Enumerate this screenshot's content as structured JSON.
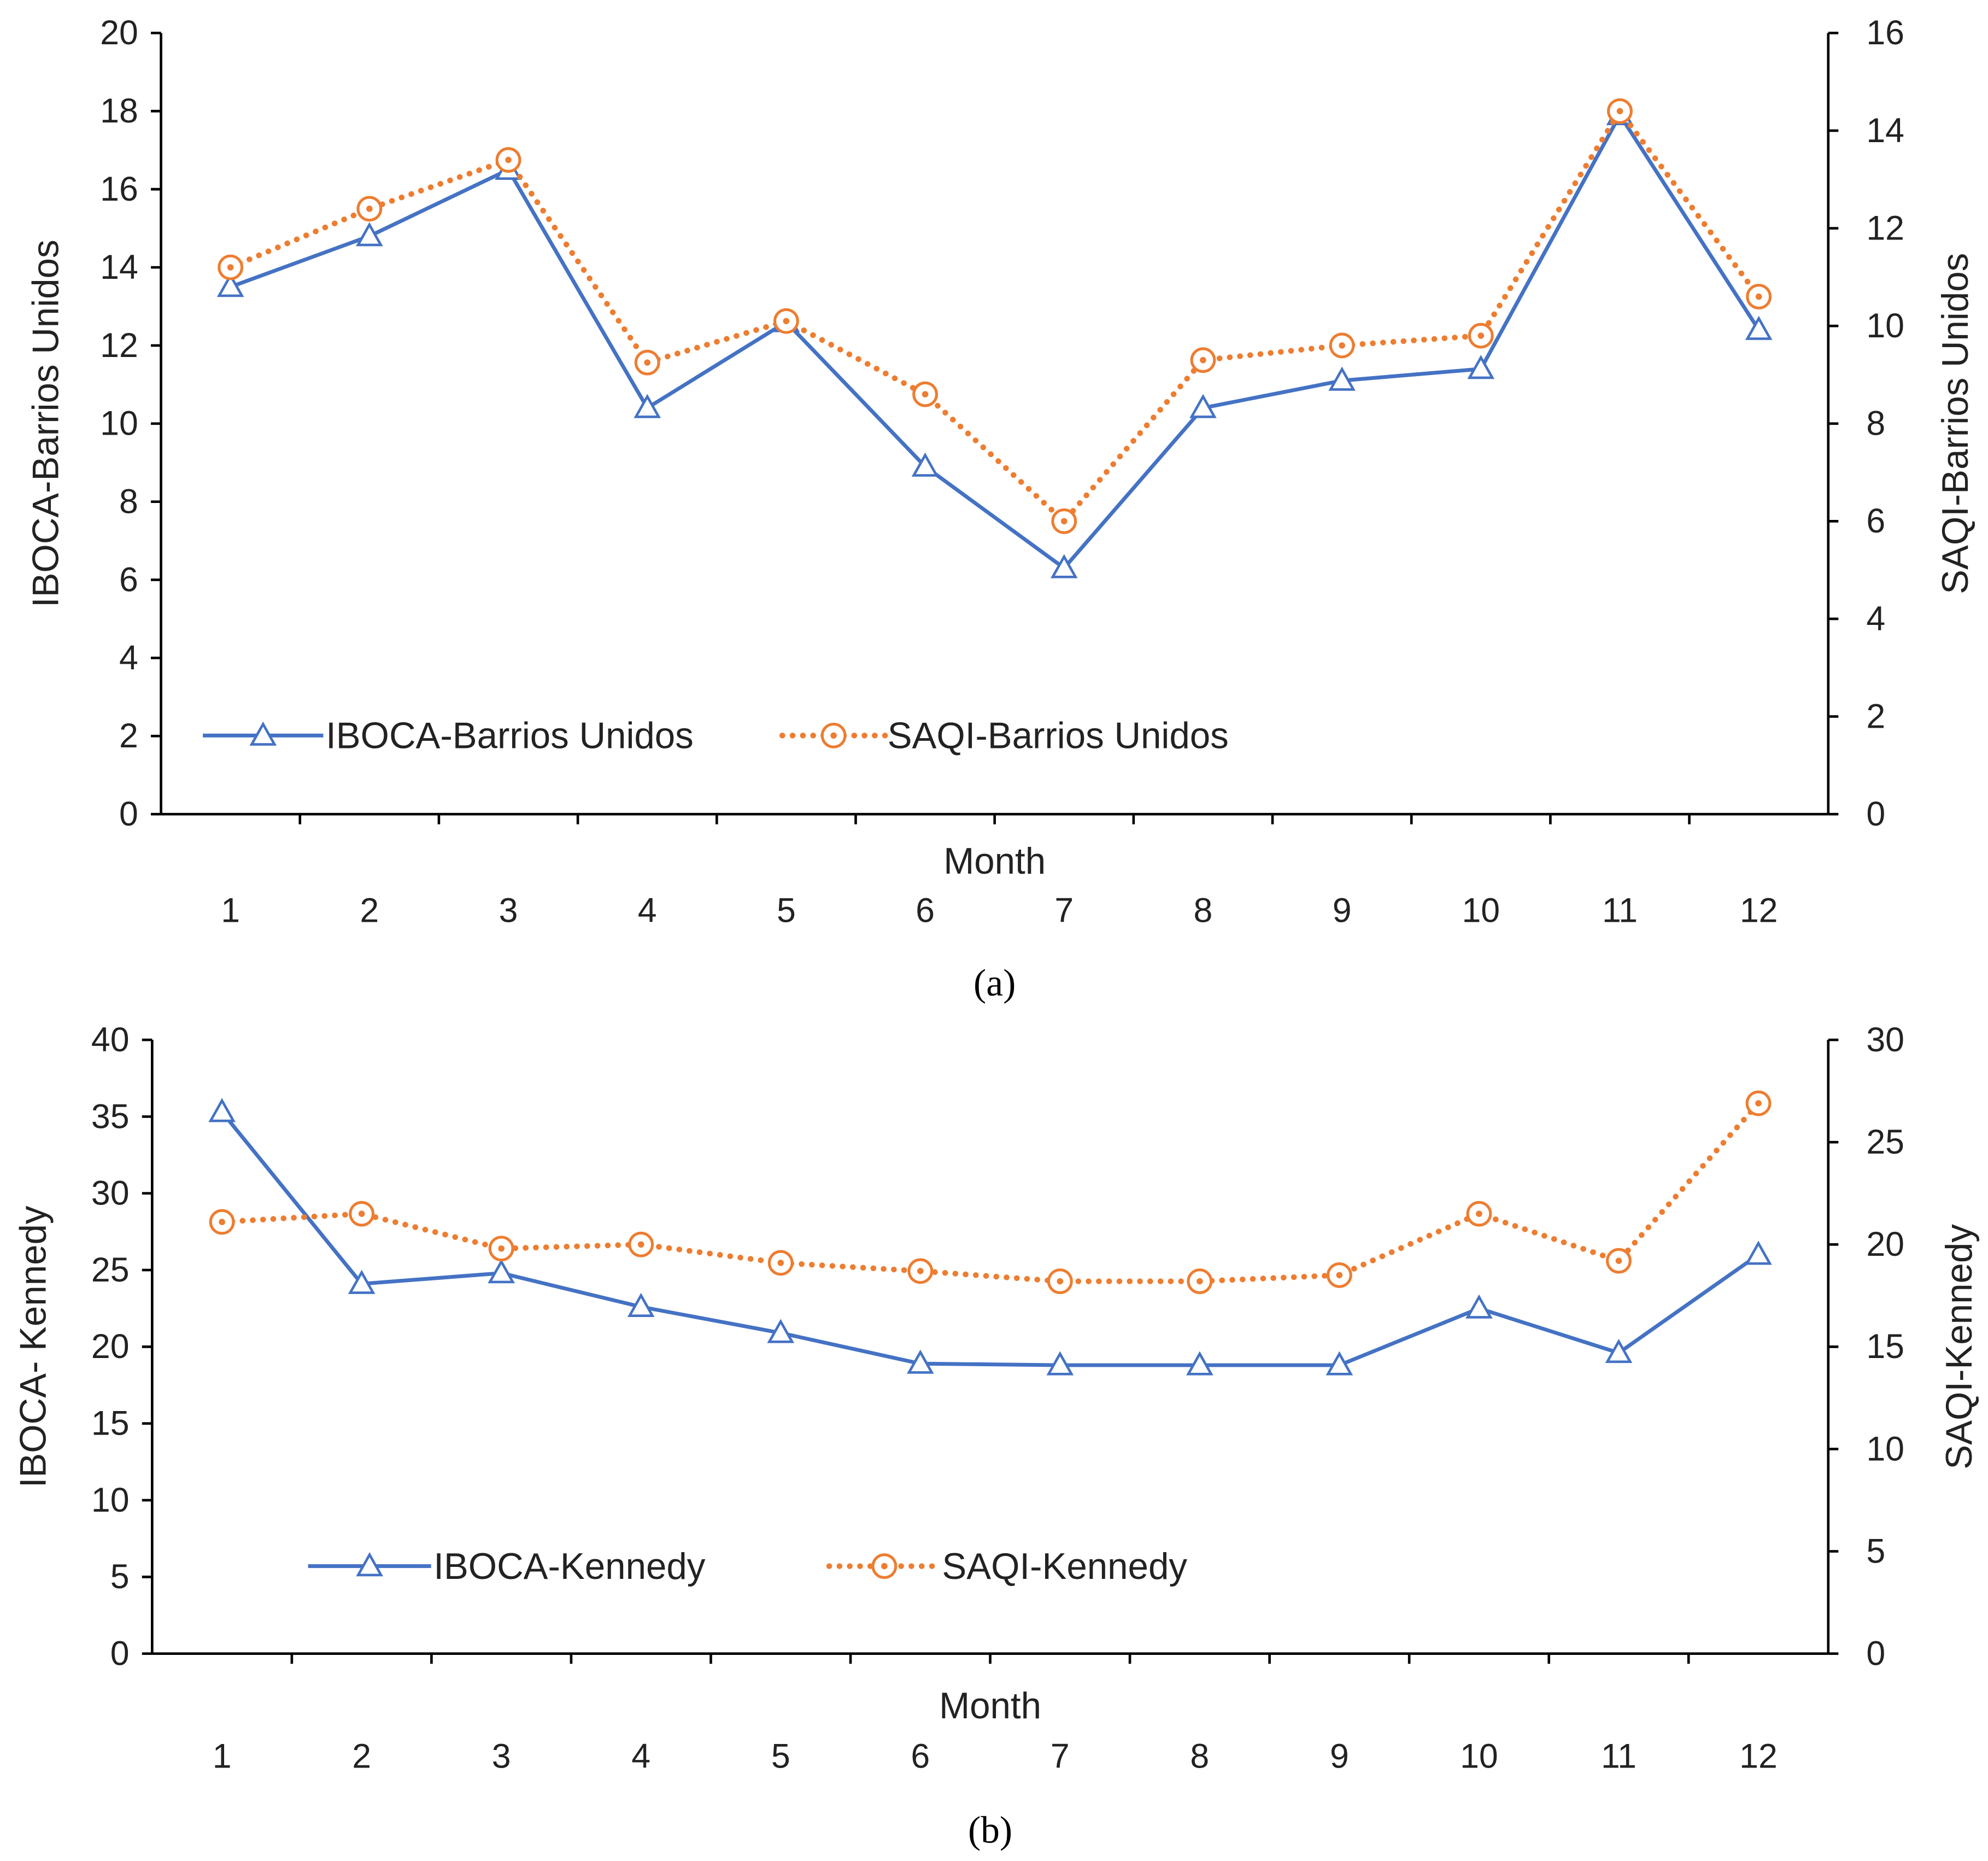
{
  "chart_data": [
    {
      "type": "line",
      "caption": "(a)",
      "caption_letter": "a",
      "xlabel": "Month",
      "ylabel": "IBOCA-Barrios Unidos",
      "ylabel_right": "SAQI-Barrios Unidos",
      "ylim": [
        0,
        20
      ],
      "yticks": [
        0,
        2,
        4,
        6,
        8,
        10,
        12,
        14,
        16,
        18,
        20
      ],
      "ylim_right": [
        0,
        16
      ],
      "yticks_right": [
        0,
        2,
        4,
        6,
        8,
        10,
        12,
        14,
        16
      ],
      "categories": [
        "1",
        "2",
        "3",
        "4",
        "5",
        "6",
        "7",
        "8",
        "9",
        "10",
        "11",
        "12"
      ],
      "legend_position": "bottom-left",
      "series": [
        {
          "name": "IBOCA-Barrios Unidos",
          "axis": "left",
          "color": "#4472C4",
          "marker": "triangle",
          "style": "solid",
          "values": [
            13.5,
            14.8,
            16.5,
            10.4,
            12.6,
            8.9,
            6.3,
            10.4,
            11.1,
            11.4,
            17.9,
            12.4
          ]
        },
        {
          "name": "SAQI-Barrios Unidos",
          "axis": "right",
          "color": "#ED7D31",
          "marker": "circle",
          "style": "dotted",
          "values": [
            11.2,
            12.4,
            13.4,
            9.25,
            10.1,
            8.6,
            6.0,
            9.3,
            9.6,
            9.8,
            14.4,
            10.6
          ]
        }
      ]
    },
    {
      "type": "line",
      "caption": "(b)",
      "caption_letter": "b",
      "xlabel": "Month",
      "ylabel": "IBOCA- Kennedy",
      "ylabel_right": "SAQI-Kennedy",
      "ylim": [
        0,
        40
      ],
      "yticks": [
        0,
        5,
        10,
        15,
        20,
        25,
        30,
        35,
        40
      ],
      "ylim_right": [
        0,
        30
      ],
      "yticks_right": [
        0,
        5,
        10,
        15,
        20,
        25,
        30
      ],
      "categories": [
        "1",
        "2",
        "3",
        "4",
        "5",
        "6",
        "7",
        "8",
        "9",
        "10",
        "11",
        "12"
      ],
      "legend_position": "bottom-left",
      "series": [
        {
          "name": "IBOCA-Kennedy",
          "axis": "left",
          "color": "#4472C4",
          "marker": "triangle",
          "style": "solid",
          "values": [
            35.3,
            24.1,
            24.8,
            22.6,
            20.9,
            18.9,
            18.8,
            18.8,
            18.8,
            22.5,
            19.6,
            26.0
          ]
        },
        {
          "name": "SAQI-Kennedy",
          "axis": "right",
          "color": "#ED7D31",
          "marker": "circle",
          "style": "dotted",
          "values": [
            21.1,
            21.5,
            19.8,
            20.0,
            19.1,
            18.7,
            18.2,
            18.2,
            18.5,
            21.5,
            19.2,
            26.9
          ]
        }
      ]
    }
  ]
}
